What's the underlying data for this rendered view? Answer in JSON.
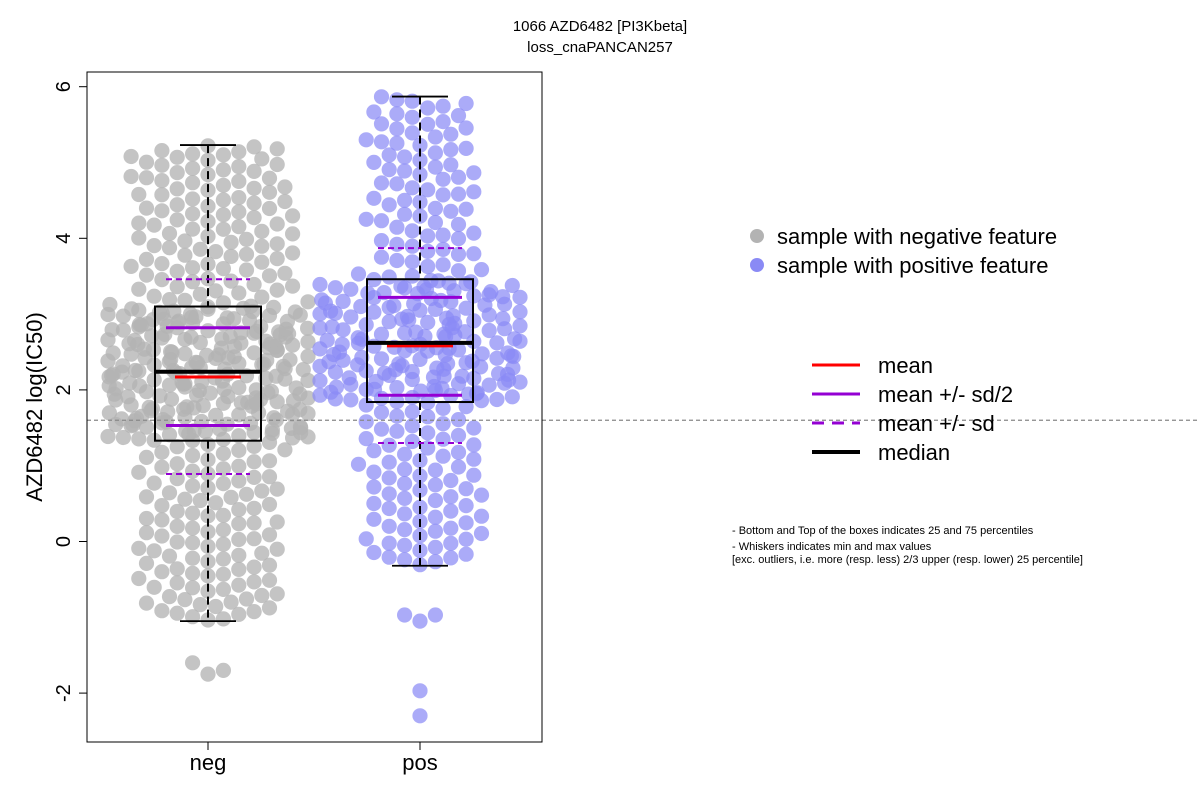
{
  "chart_data": {
    "type": "beeswarm-boxplot",
    "title": "1066 AZD6482 [PI3Kbeta]",
    "subtitle": "loss_cnaPANCAN257",
    "ylabel": "AZD6482 log(IC50)",
    "xlabel": "",
    "ylim": [
      -2.6,
      6.2
    ],
    "yticks": [
      -2,
      0,
      2,
      4,
      6
    ],
    "categories": [
      "neg",
      "pos"
    ],
    "reference_line": 1.6,
    "groups": [
      {
        "name": "neg",
        "color": "#b3b3b3",
        "q1": 1.33,
        "q3": 3.1,
        "median": 2.24,
        "mean": 2.17,
        "mean_minus_sd_half": 1.53,
        "mean_plus_sd_half": 2.82,
        "mean_minus_sd": 0.89,
        "mean_plus_sd": 3.46,
        "whisker_low": -1.05,
        "whisker_high": 5.23,
        "outliers": [
          -1.6,
          -1.7,
          -1.75
        ],
        "n_points": 430
      },
      {
        "name": "pos",
        "color": "#8a8af5",
        "q1": 1.84,
        "q3": 3.46,
        "median": 2.62,
        "mean": 2.58,
        "mean_minus_sd_half": 1.93,
        "mean_plus_sd_half": 3.22,
        "mean_minus_sd": 1.3,
        "mean_plus_sd": 3.87,
        "whisker_low": -0.32,
        "whisker_high": 5.87,
        "outliers": [
          -0.97,
          -1.05,
          -0.97,
          -1.97,
          -2.3
        ],
        "n_points": 320
      }
    ],
    "legend_points": [
      {
        "label": "sample with negative feature",
        "color": "#b3b3b3"
      },
      {
        "label": "sample with positive feature",
        "color": "#8a8af5"
      }
    ],
    "legend_lines": [
      {
        "label": "mean",
        "color": "#ff0000",
        "style": "solid"
      },
      {
        "label": "mean +/- sd/2",
        "color": "#9400d3",
        "style": "solid"
      },
      {
        "label": "mean +/- sd",
        "color": "#9400d3",
        "style": "dashed"
      },
      {
        "label": "median",
        "color": "#000000",
        "style": "solid-thick"
      }
    ],
    "notes": [
      "- Bottom and Top of the boxes indicates 25 and 75 percentiles",
      "- Whiskers indicates min and max values",
      "[exc. outliers, i.e. more (resp. less) 2/3 upper (resp. lower) 25 percentile]"
    ]
  }
}
